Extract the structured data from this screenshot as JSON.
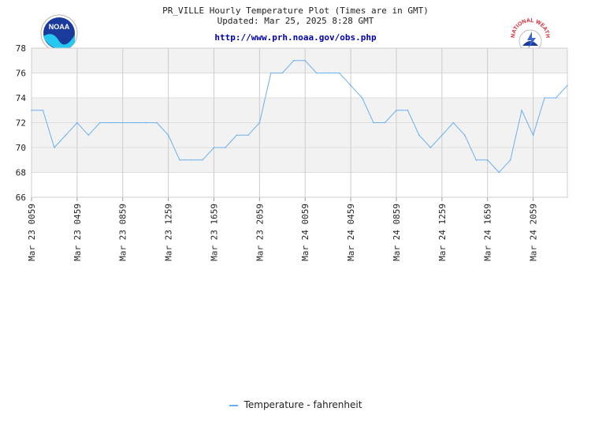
{
  "header": {
    "title": "PR_VILLE Hourly Temperature Plot (Times are in GMT)",
    "updated": "Updated: Mar 25, 2025 8:28 GMT",
    "url": "http://www.prh.noaa.gov/obs.php"
  },
  "logos": {
    "noaa_text": "NOAA",
    "nws_text": "NATIONAL WEATHER SERVICE"
  },
  "colors": {
    "line": "#6ab0ee",
    "band": "#f2f2f2",
    "grid": "#cccccc",
    "noaa_blue": "#1a3a9c",
    "noaa_cyan": "#24c8f0",
    "nws_red": "#d8242a"
  },
  "chart_data": {
    "type": "line",
    "title": "PR_VILLE Hourly Temperature Plot (Times are in GMT)",
    "ylim": [
      66,
      78
    ],
    "yticks": [
      66,
      68,
      70,
      72,
      74,
      76,
      78
    ],
    "grid": true,
    "legend": "bottom-center",
    "xtick_labels": [
      "Mar 23 0059",
      "Mar 23 0459",
      "Mar 23 0859",
      "Mar 23 1259",
      "Mar 23 1659",
      "Mar 23 2059",
      "Mar 24 0059",
      "Mar 24 0459",
      "Mar 24 0859",
      "Mar 24 1259",
      "Mar 24 1659",
      "Mar 24 2059"
    ],
    "series": [
      {
        "name": "Temperature - fahrenheit",
        "values": [
          73,
          73,
          70,
          71,
          72,
          71,
          72,
          72,
          72,
          72,
          72,
          72,
          71,
          69,
          69,
          69,
          70,
          70,
          71,
          71,
          72,
          76,
          76,
          77,
          77,
          76,
          76,
          76,
          75,
          74,
          72,
          72,
          73,
          73,
          71,
          70,
          71,
          72,
          71,
          69,
          69,
          68,
          69,
          73,
          71,
          74,
          74,
          75
        ]
      }
    ]
  }
}
